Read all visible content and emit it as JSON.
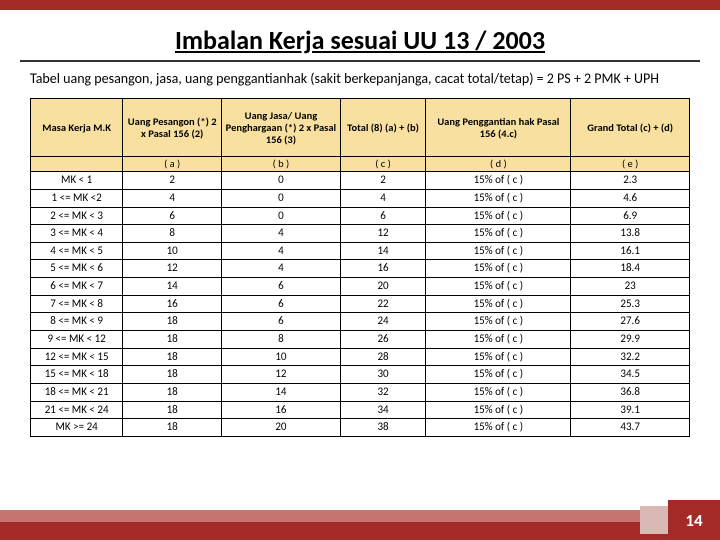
{
  "title": "Imbalan Kerja sesuai UU 13 / 2003",
  "subtitle": "Tabel uang pesangon, jasa, uang penggantianhak (sakit berkepanjanga, cacat total/tetap)  = 2 PS + 2 PMK + UPH",
  "headers": {
    "h0": "Masa Kerja M.K",
    "h1": "Uang Pesangon (*) 2 x Pasal 156 (2)",
    "h2": "Uang Jasa/ Uang Penghargaan (*) 2 x Pasal 156 (3)",
    "h3": "Total (8) (a) + (b)",
    "h4": "Uang Penggantian hak Pasal 156 (4.c)",
    "h5": "Grand Total (c) + (d)"
  },
  "letters": {
    "l0": "",
    "l1": "( a )",
    "l2": "( b )",
    "l3": "( c )",
    "l4": "( d )",
    "l5": "( e )"
  },
  "rows": [
    {
      "c0": "MK < 1",
      "c1": "2",
      "c2": "0",
      "c3": "2",
      "c4": "15% of ( c )",
      "c5": "2.3"
    },
    {
      "c0": "1 <= MK <2",
      "c1": "4",
      "c2": "0",
      "c3": "4",
      "c4": "15% of ( c )",
      "c5": "4.6"
    },
    {
      "c0": "2 <= MK < 3",
      "c1": "6",
      "c2": "0",
      "c3": "6",
      "c4": "15% of ( c )",
      "c5": "6.9"
    },
    {
      "c0": "3 <= MK < 4",
      "c1": "8",
      "c2": "4",
      "c3": "12",
      "c4": "15% of ( c )",
      "c5": "13.8"
    },
    {
      "c0": "4 <= MK < 5",
      "c1": "10",
      "c2": "4",
      "c3": "14",
      "c4": "15% of ( c )",
      "c5": "16.1"
    },
    {
      "c0": "5 <= MK < 6",
      "c1": "12",
      "c2": "4",
      "c3": "16",
      "c4": "15% of ( c )",
      "c5": "18.4"
    },
    {
      "c0": "6 <= MK < 7",
      "c1": "14",
      "c2": "6",
      "c3": "20",
      "c4": "15% of ( c )",
      "c5": "23"
    },
    {
      "c0": "7 <= MK < 8",
      "c1": "16",
      "c2": "6",
      "c3": "22",
      "c4": "15% of ( c )",
      "c5": "25.3"
    },
    {
      "c0": "8 <= MK < 9",
      "c1": "18",
      "c2": "6",
      "c3": "24",
      "c4": "15% of ( c )",
      "c5": "27.6"
    },
    {
      "c0": "9 <= MK < 12",
      "c1": "18",
      "c2": "8",
      "c3": "26",
      "c4": "15% of ( c )",
      "c5": "29.9"
    },
    {
      "c0": "12 <= MK < 15",
      "c1": "18",
      "c2": "10",
      "c3": "28",
      "c4": "15% of ( c )",
      "c5": "32.2"
    },
    {
      "c0": "15 <= MK < 18",
      "c1": "18",
      "c2": "12",
      "c3": "30",
      "c4": "15% of ( c )",
      "c5": "34.5"
    },
    {
      "c0": "18 <= MK < 21",
      "c1": "18",
      "c2": "14",
      "c3": "32",
      "c4": "15% of ( c )",
      "c5": "36.8"
    },
    {
      "c0": "21 <= MK < 24",
      "c1": "18",
      "c2": "16",
      "c3": "34",
      "c4": "15% of ( c )",
      "c5": "39.1"
    },
    {
      "c0": "MK >= 24",
      "c1": "18",
      "c2": "20",
      "c3": "38",
      "c4": "15% of ( c )",
      "c5": "43.7"
    }
  ],
  "page": "14"
}
